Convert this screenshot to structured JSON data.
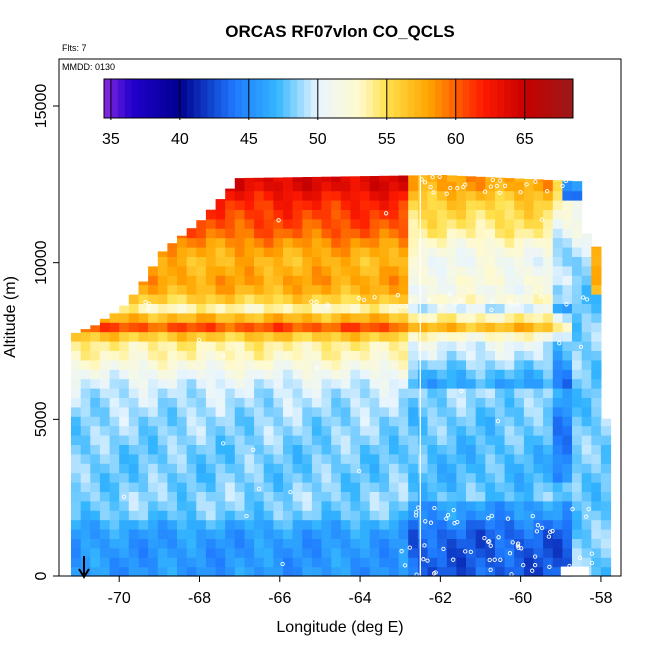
{
  "chart_data": {
    "type": "heatmap",
    "title": "ORCAS RF07vlon CO_QCLS",
    "corner_labels": [
      "Flts: 7",
      "MMDD: 0130"
    ],
    "xlabel": "Longitude (deg E)",
    "ylabel": "Altitude (m)",
    "xlim": [
      -71.5,
      -57.5
    ],
    "ylim": [
      0,
      16500
    ],
    "x_ticks": [
      -70,
      -68,
      -66,
      -64,
      -62,
      -60,
      -58
    ],
    "y_ticks": [
      0,
      5000,
      10000,
      15000
    ],
    "colorbar": {
      "min": 34.5,
      "max": 68.5,
      "ticks": [
        35,
        40,
        45,
        50,
        55,
        60,
        65
      ],
      "stops": [
        {
          "v": 34.5,
          "c": "#8a2be2"
        },
        {
          "v": 36.5,
          "c": "#2200cc"
        },
        {
          "v": 40,
          "c": "#000090"
        },
        {
          "v": 44,
          "c": "#1f7aff"
        },
        {
          "v": 47,
          "c": "#33b5ff"
        },
        {
          "v": 50,
          "c": "#e8f5ff"
        },
        {
          "v": 53,
          "c": "#fffacd"
        },
        {
          "v": 55,
          "c": "#ffe14d"
        },
        {
          "v": 58,
          "c": "#ffa500"
        },
        {
          "v": 62,
          "c": "#ff1a00"
        },
        {
          "v": 65,
          "c": "#c80000"
        },
        {
          "v": 68.5,
          "c": "#9a1a1a"
        }
      ]
    },
    "altitude_profile_CO_ppb": [
      {
        "alt": 12500,
        "value": 64
      },
      {
        "alt": 12000,
        "value": 62
      },
      {
        "alt": 11500,
        "value": 61
      },
      {
        "alt": 11000,
        "value": 60
      },
      {
        "alt": 10500,
        "value": 58
      },
      {
        "alt": 10000,
        "value": 57
      },
      {
        "alt": 9500,
        "value": 58
      },
      {
        "alt": 9000,
        "value": 57
      },
      {
        "alt": 8500,
        "value": 53
      },
      {
        "alt": 8000,
        "value": 61
      },
      {
        "alt": 7500,
        "value": 54
      },
      {
        "alt": 7000,
        "value": 53
      },
      {
        "alt": 6500,
        "value": 51
      },
      {
        "alt": 6000,
        "value": 49.5
      },
      {
        "alt": 5500,
        "value": 49
      },
      {
        "alt": 5000,
        "value": 48.5
      },
      {
        "alt": 4500,
        "value": 48.5
      },
      {
        "alt": 4000,
        "value": 48
      },
      {
        "alt": 3500,
        "value": 48
      },
      {
        "alt": 3000,
        "value": 48
      },
      {
        "alt": 2500,
        "value": 48.5
      },
      {
        "alt": 2000,
        "value": 48
      },
      {
        "alt": 1500,
        "value": 46
      },
      {
        "alt": 1000,
        "value": 45.5
      },
      {
        "alt": 500,
        "value": 45.5
      },
      {
        "alt": 0,
        "value": 45.5
      }
    ],
    "flight_track_x": -62.5,
    "arrow_x": -70.9
  }
}
